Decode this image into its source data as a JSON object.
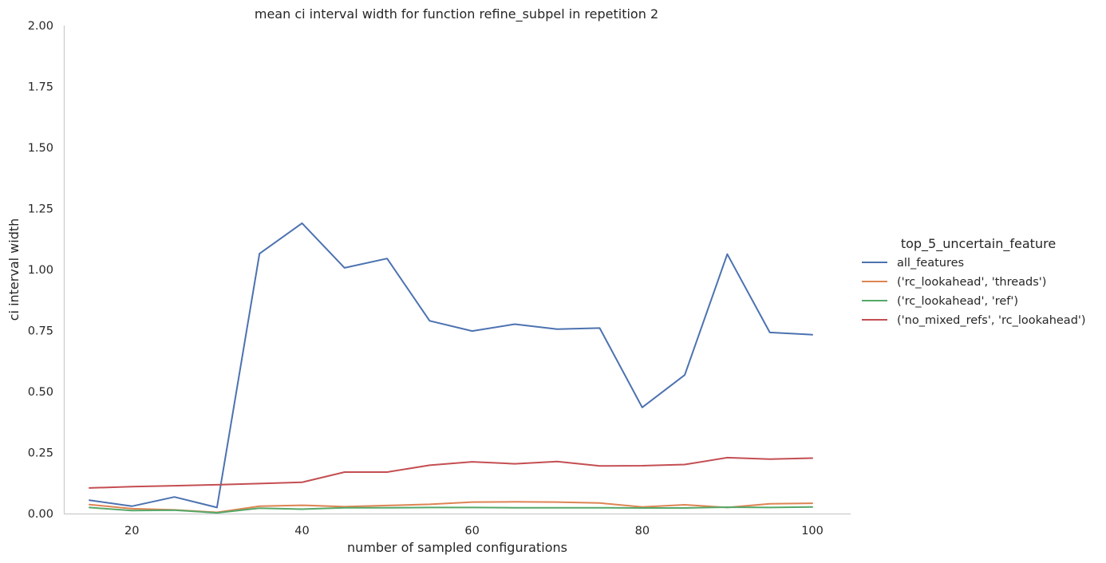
{
  "chart_data": {
    "type": "line",
    "title": "mean ci interval width for function refine_subpel in repetition 2",
    "xlabel": "number of sampled configurations",
    "ylabel": "ci interval width",
    "xlim": [
      12,
      104.5
    ],
    "ylim": [
      0,
      2
    ],
    "xticks": [
      20,
      40,
      60,
      80,
      100
    ],
    "yticks": [
      0,
      0.25,
      0.5,
      0.75,
      1.0,
      1.25,
      1.5,
      1.75,
      2.0
    ],
    "ytick_labels": [
      "0.00",
      "0.25",
      "0.50",
      "0.75",
      "1.00",
      "1.25",
      "1.50",
      "1.75",
      "2.00"
    ],
    "grid": false,
    "legend": {
      "title": "top_5_uncertain_feature",
      "placement": "right"
    },
    "x": [
      15,
      20,
      25,
      30,
      35,
      40,
      45,
      50,
      55,
      60,
      65,
      70,
      75,
      80,
      85,
      90,
      95,
      100
    ],
    "series": [
      {
        "name": "all_features",
        "color": "#4c72b0",
        "values": [
          0.055,
          0.03,
          0.068,
          0.025,
          1.065,
          1.19,
          1.007,
          1.045,
          0.79,
          0.748,
          0.776,
          0.756,
          0.76,
          0.435,
          0.568,
          1.063,
          0.742,
          0.733
        ]
      },
      {
        "name": "('rc_lookahead', 'threads')",
        "color": "#dd8452",
        "values": [
          0.037,
          0.02,
          0.015,
          0.005,
          0.03,
          0.034,
          0.028,
          0.033,
          0.038,
          0.047,
          0.048,
          0.047,
          0.043,
          0.027,
          0.036,
          0.025,
          0.04,
          0.042
        ]
      },
      {
        "name": "('rc_lookahead', 'ref')",
        "color": "#55a868",
        "values": [
          0.025,
          0.012,
          0.014,
          0.003,
          0.022,
          0.018,
          0.024,
          0.024,
          0.025,
          0.025,
          0.024,
          0.024,
          0.024,
          0.023,
          0.023,
          0.026,
          0.025,
          0.027
        ]
      },
      {
        "name": "('no_mixed_refs', 'rc_lookahead')",
        "color": "#c44e52",
        "values": [
          0.105,
          0.11,
          0.114,
          0.118,
          0.123,
          0.128,
          0.17,
          0.17,
          0.198,
          0.212,
          0.204,
          0.213,
          0.195,
          0.196,
          0.201,
          0.229,
          0.223,
          0.227
        ]
      }
    ]
  }
}
